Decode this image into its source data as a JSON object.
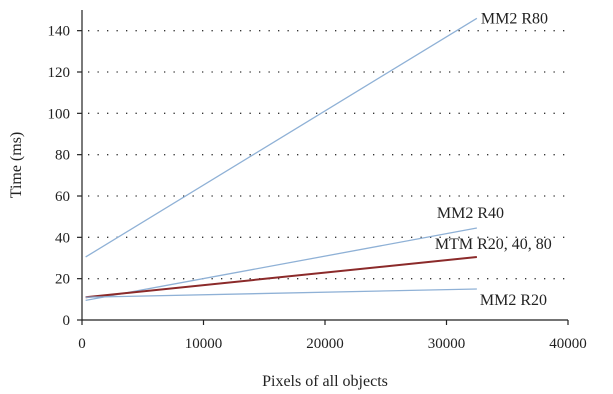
{
  "chart_data": {
    "type": "line",
    "xlabel": "Pixels of all objects",
    "ylabel": "Time (ms)",
    "xlim": [
      0,
      40000
    ],
    "ylim": [
      0,
      150
    ],
    "xticks": [
      0,
      10000,
      20000,
      30000,
      40000
    ],
    "yticks": [
      0,
      20,
      40,
      60,
      80,
      100,
      120,
      140
    ],
    "grid": "horizontal dotted",
    "legend": "direct labels at line ends",
    "series": [
      {
        "name": "MM2 R80",
        "x": [
          300,
          32500
        ],
        "y": [
          30.5,
          146
        ],
        "color": "#8fb1d6"
      },
      {
        "name": "MM2 R40",
        "x": [
          300,
          32500
        ],
        "y": [
          9.5,
          44.5
        ],
        "color": "#8fb1d6"
      },
      {
        "name": "MTM R20, 40, 80",
        "x": [
          300,
          32500
        ],
        "y": [
          11,
          30.5
        ],
        "color": "#8b2a2a"
      },
      {
        "name": "MM2 R20",
        "x": [
          300,
          32500
        ],
        "y": [
          11,
          15
        ],
        "color": "#8fb1d6"
      }
    ]
  }
}
